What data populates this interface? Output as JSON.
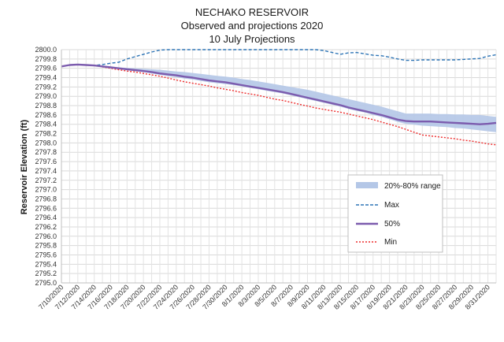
{
  "chart_data": {
    "type": "line",
    "title": [
      "NECHAKO RESERVOIR",
      "Observed and projections 2020",
      "10 July Projections"
    ],
    "xlabel": "",
    "ylabel": "Reservoir Elevation (ft)",
    "ylim": [
      2795.0,
      2800.0
    ],
    "ytick_step": 0.2,
    "y_tick_labels": [
      "2795.0",
      "2795.2",
      "2795.4",
      "2795.6",
      "2795.8",
      "2796.0",
      "2796.2",
      "2796.4",
      "2796.6",
      "2796.8",
      "2797.0",
      "2797.2",
      "2797.4",
      "2797.6",
      "2797.8",
      "2798.0",
      "2798.2",
      "2798.4",
      "2798.6",
      "2798.8",
      "2799.0",
      "2799.2",
      "2799.4",
      "2799.6",
      "2799.8",
      "2800.0"
    ],
    "x_tick_labels": [
      "7/10/2020",
      "7/12/2020",
      "7/14/2020",
      "7/16/2020",
      "7/18/2020",
      "7/20/2020",
      "7/22/2020",
      "7/24/2020",
      "7/26/2020",
      "7/28/2020",
      "7/30/2020",
      "8/1/2020",
      "8/3/2020",
      "8/5/2020",
      "8/7/2020",
      "8/9/2020",
      "8/11/2020",
      "8/13/2020",
      "8/15/2020",
      "8/17/2020",
      "8/19/2020",
      "8/21/2020",
      "8/23/2020",
      "8/25/2020",
      "8/27/2020",
      "8/29/2020",
      "8/31/2020"
    ],
    "grid": true,
    "legend_position": "right",
    "x_dates": [
      "7/10/2020",
      "7/11/2020",
      "7/12/2020",
      "7/13/2020",
      "7/14/2020",
      "7/15/2020",
      "7/16/2020",
      "7/17/2020",
      "7/18/2020",
      "7/19/2020",
      "7/20/2020",
      "7/21/2020",
      "7/22/2020",
      "7/23/2020",
      "7/24/2020",
      "7/25/2020",
      "7/26/2020",
      "7/27/2020",
      "7/28/2020",
      "7/29/2020",
      "7/30/2020",
      "7/31/2020",
      "8/1/2020",
      "8/2/2020",
      "8/3/2020",
      "8/4/2020",
      "8/5/2020",
      "8/6/2020",
      "8/7/2020",
      "8/8/2020",
      "8/9/2020",
      "8/10/2020",
      "8/11/2020",
      "8/12/2020",
      "8/13/2020",
      "8/14/2020",
      "8/15/2020",
      "8/16/2020",
      "8/17/2020",
      "8/18/2020",
      "8/19/2020",
      "8/20/2020",
      "8/21/2020",
      "8/22/2020",
      "8/23/2020",
      "8/24/2020",
      "8/25/2020",
      "8/26/2020",
      "8/27/2020",
      "8/28/2020",
      "8/29/2020",
      "8/30/2020",
      "8/31/2020",
      "9/1/2020"
    ],
    "series": [
      {
        "name": "20%-80% range",
        "kind": "band",
        "color": "#b4c7e7",
        "lower": [
          2799.64,
          2799.67,
          2799.68,
          2799.67,
          2799.66,
          2799.64,
          2799.61,
          2799.59,
          2799.56,
          2799.54,
          2799.52,
          2799.49,
          2799.46,
          2799.43,
          2799.41,
          2799.38,
          2799.36,
          2799.33,
          2799.3,
          2799.28,
          2799.26,
          2799.24,
          2799.21,
          2799.18,
          2799.15,
          2799.12,
          2799.09,
          2799.06,
          2799.02,
          2798.98,
          2798.94,
          2798.9,
          2798.86,
          2798.82,
          2798.78,
          2798.73,
          2798.69,
          2798.65,
          2798.6,
          2798.56,
          2798.51,
          2798.45,
          2798.41,
          2798.39,
          2798.37,
          2798.36,
          2798.35,
          2798.34,
          2798.32,
          2798.31,
          2798.29,
          2798.27,
          2798.25,
          2798.23
        ],
        "upper": [
          2799.64,
          2799.67,
          2799.68,
          2799.67,
          2799.66,
          2799.65,
          2799.63,
          2799.62,
          2799.61,
          2799.6,
          2799.59,
          2799.58,
          2799.57,
          2799.55,
          2799.53,
          2799.52,
          2799.5,
          2799.48,
          2799.46,
          2799.44,
          2799.42,
          2799.4,
          2799.37,
          2799.35,
          2799.32,
          2799.29,
          2799.26,
          2799.23,
          2799.2,
          2799.17,
          2799.14,
          2799.1,
          2799.06,
          2799.02,
          2798.98,
          2798.94,
          2798.9,
          2798.86,
          2798.82,
          2798.78,
          2798.73,
          2798.68,
          2798.63,
          2798.63,
          2798.63,
          2798.63,
          2798.62,
          2798.62,
          2798.61,
          2798.61,
          2798.6,
          2798.6,
          2798.58,
          2798.56
        ]
      },
      {
        "name": "Max",
        "kind": "dashed",
        "color": "#2e75b6",
        "values": [
          2799.64,
          2799.67,
          2799.68,
          2799.67,
          2799.66,
          2799.68,
          2799.71,
          2799.73,
          2799.8,
          2799.85,
          2799.9,
          2799.95,
          2799.99,
          2800.0,
          2800.0,
          2800.0,
          2800.0,
          2800.0,
          2800.0,
          2800.0,
          2800.0,
          2800.0,
          2800.0,
          2800.0,
          2800.0,
          2800.0,
          2800.0,
          2800.0,
          2800.0,
          2800.0,
          2800.0,
          2800.0,
          2799.98,
          2799.94,
          2799.9,
          2799.93,
          2799.94,
          2799.91,
          2799.88,
          2799.87,
          2799.84,
          2799.8,
          2799.77,
          2799.77,
          2799.78,
          2799.78,
          2799.78,
          2799.78,
          2799.78,
          2799.79,
          2799.8,
          2799.81,
          2799.86,
          2799.89
        ]
      },
      {
        "name": "50%",
        "kind": "solid",
        "color": "#7c5cae",
        "values": [
          2799.64,
          2799.67,
          2799.68,
          2799.67,
          2799.66,
          2799.64,
          2799.62,
          2799.6,
          2799.58,
          2799.56,
          2799.54,
          2799.52,
          2799.49,
          2799.47,
          2799.45,
          2799.42,
          2799.4,
          2799.37,
          2799.34,
          2799.32,
          2799.3,
          2799.27,
          2799.24,
          2799.21,
          2799.18,
          2799.15,
          2799.12,
          2799.09,
          2799.05,
          2799.01,
          2798.97,
          2798.93,
          2798.89,
          2798.85,
          2798.81,
          2798.76,
          2798.72,
          2798.68,
          2798.64,
          2798.6,
          2798.55,
          2798.5,
          2798.47,
          2798.46,
          2798.46,
          2798.46,
          2798.45,
          2798.44,
          2798.43,
          2798.42,
          2798.41,
          2798.4,
          2798.41,
          2798.43
        ]
      },
      {
        "name": "Min",
        "kind": "dotted",
        "color": "#ee2e2e",
        "values": [
          2799.64,
          2799.67,
          2799.68,
          2799.67,
          2799.66,
          2799.63,
          2799.6,
          2799.57,
          2799.54,
          2799.52,
          2799.49,
          2799.46,
          2799.43,
          2799.39,
          2799.35,
          2799.31,
          2799.28,
          2799.25,
          2799.22,
          2799.18,
          2799.15,
          2799.12,
          2799.08,
          2799.05,
          2799.02,
          2798.98,
          2798.94,
          2798.91,
          2798.87,
          2798.83,
          2798.79,
          2798.75,
          2798.72,
          2798.69,
          2798.66,
          2798.62,
          2798.58,
          2798.54,
          2798.5,
          2798.45,
          2798.4,
          2798.35,
          2798.29,
          2798.23,
          2798.17,
          2798.15,
          2798.13,
          2798.11,
          2798.09,
          2798.06,
          2798.04,
          2798.01,
          2797.98,
          2797.96
        ]
      }
    ]
  }
}
